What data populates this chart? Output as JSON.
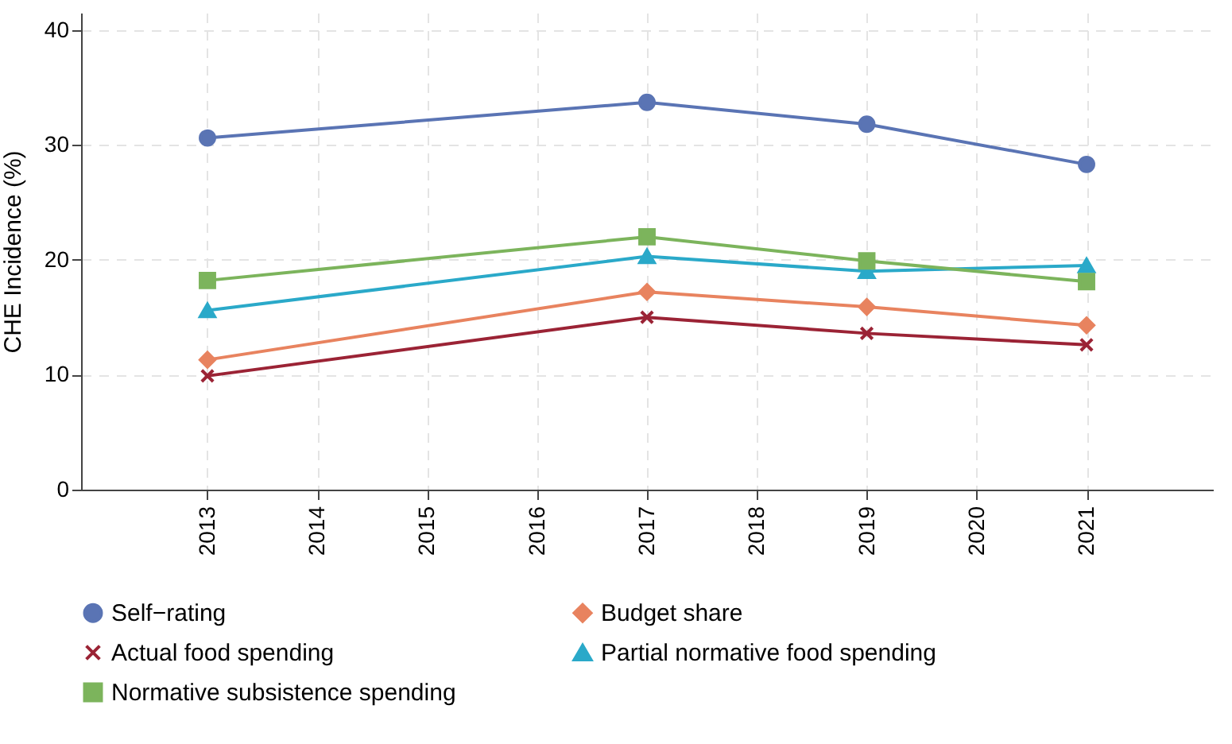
{
  "chart_data": {
    "type": "line",
    "ylabel": "CHE Incidence (%)",
    "x": [
      2013,
      2017,
      2019,
      2021
    ],
    "xlim": [
      2011.85,
      2022.15
    ],
    "xticks": [
      2013,
      2014,
      2015,
      2016,
      2017,
      2018,
      2019,
      2020,
      2021
    ],
    "ylim": [
      0,
      41.5
    ],
    "yticks": [
      0,
      10,
      20,
      30,
      40
    ],
    "grid": true,
    "legend": "bottom",
    "line_style": "solid",
    "series": [
      {
        "name": "Self−rating",
        "color": "#5a74b4",
        "marker": "circle",
        "values": [
          30.6,
          33.7,
          31.8,
          28.3
        ]
      },
      {
        "name": "Budget share",
        "color": "#e8835f",
        "marker": "diamond",
        "values": [
          11.3,
          17.2,
          15.9,
          14.3
        ]
      },
      {
        "name": "Actual food spending",
        "color": "#9b2335",
        "marker": "cross",
        "values": [
          9.9,
          15.0,
          13.6,
          12.6
        ]
      },
      {
        "name": "Partial normative food spending",
        "color": "#2aa9c9",
        "marker": "triangle",
        "values": [
          15.6,
          20.3,
          19.0,
          19.5
        ]
      },
      {
        "name": "Normative subsistence spending",
        "color": "#7cb45c",
        "marker": "square",
        "values": [
          18.2,
          22.0,
          19.9,
          18.1
        ]
      }
    ]
  }
}
